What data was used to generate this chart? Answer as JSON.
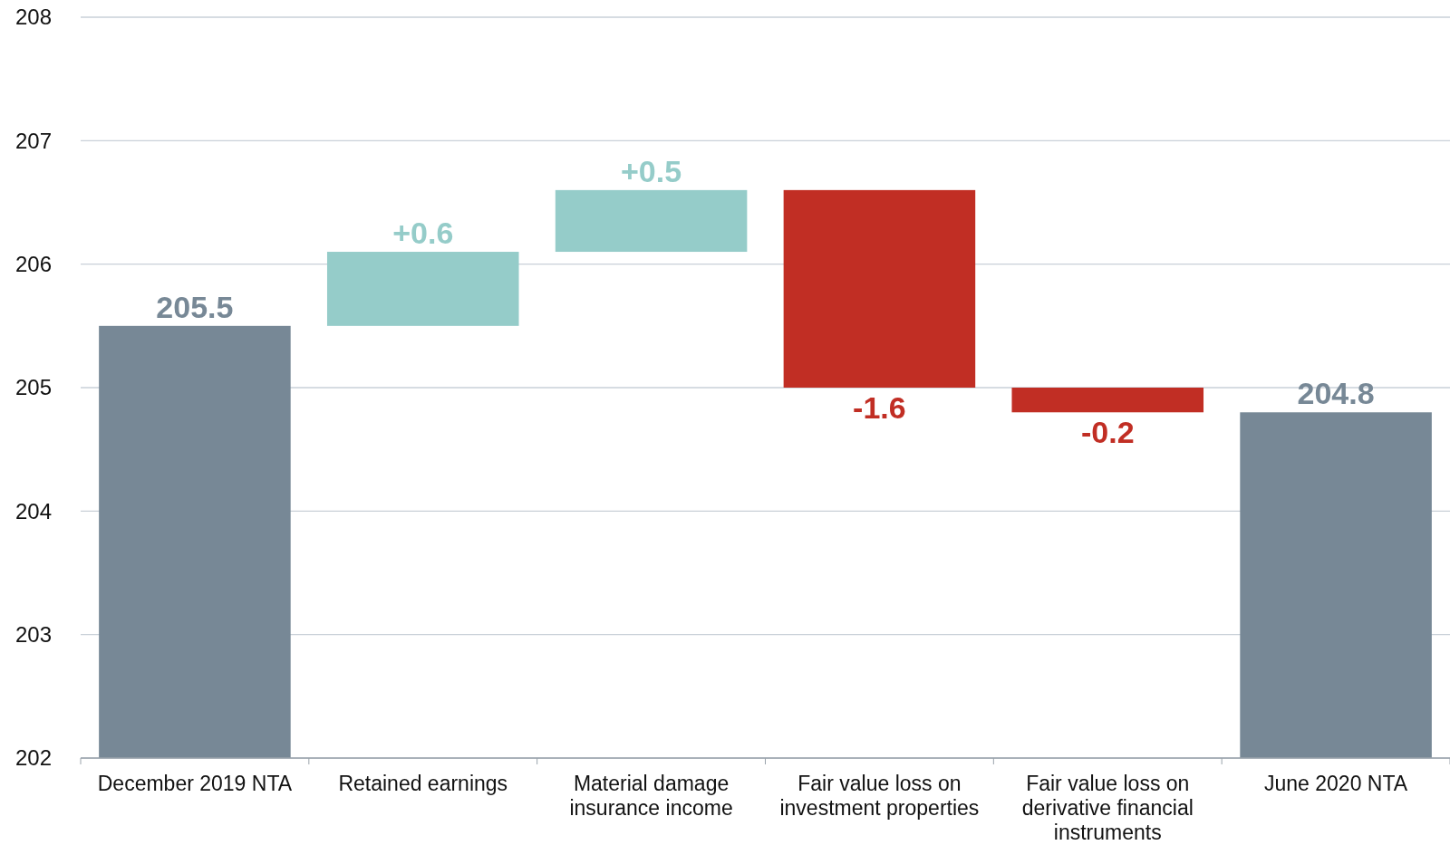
{
  "chart_data": {
    "type": "bar",
    "categories": [
      "December 2019 NTA",
      "Retained earnings",
      "Material damage insurance income",
      "Fair value loss on investment properties",
      "Fair value loss on derivative financial instruments",
      "June 2020 NTA"
    ],
    "values": [
      205.5,
      0.6,
      0.5,
      -1.6,
      -0.2,
      204.8
    ],
    "base": [
      null,
      205.5,
      206.1,
      206.6,
      205.0,
      null
    ],
    "colors": [
      "#778896",
      "#95ccc9",
      "#95ccc9",
      "#c12e24",
      "#c12e24",
      "#778896"
    ],
    "value_labels": [
      "205.5",
      "+0.6",
      "+0.5",
      "-1.6",
      "-0.2",
      "204.8"
    ],
    "ylim": [
      202,
      208
    ],
    "yticks": [
      202,
      203,
      204,
      205,
      206,
      207,
      208
    ],
    "grid": "y"
  }
}
